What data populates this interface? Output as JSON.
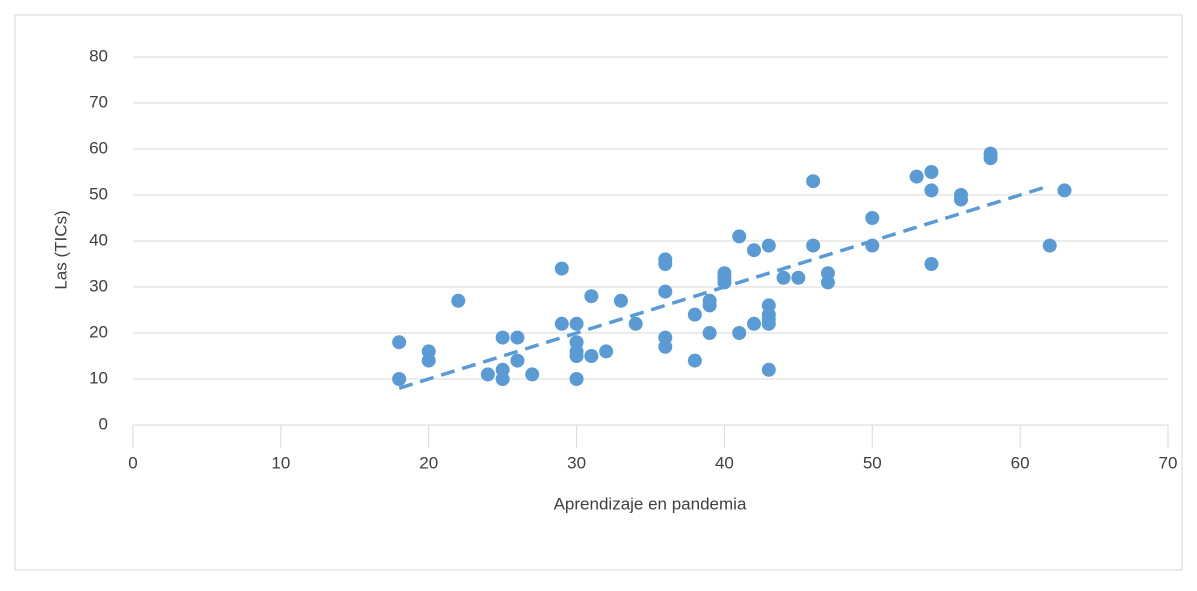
{
  "chart_data": {
    "type": "scatter",
    "xlabel": "Aprendizaje en pandemia",
    "ylabel": "Las (TICs)",
    "color": "#5b9bd5",
    "grid": true,
    "xlim": [
      0,
      70
    ],
    "xticks": [
      0,
      10,
      20,
      30,
      40,
      50,
      60,
      70
    ],
    "ylim": [
      -5,
      80
    ],
    "yticks": [
      0,
      10,
      20,
      30,
      40,
      50,
      60,
      70,
      80
    ],
    "x": [
      18,
      18,
      20,
      20,
      22,
      24,
      25,
      25,
      25,
      26,
      26,
      27,
      29,
      29,
      30,
      30,
      30,
      30,
      30,
      31,
      31,
      32,
      33,
      34,
      36,
      36,
      36,
      36,
      36,
      38,
      38,
      39,
      39,
      39,
      40,
      40,
      40,
      41,
      41,
      42,
      42,
      43,
      43,
      43,
      43,
      43,
      43,
      44,
      45,
      46,
      46,
      47,
      47,
      50,
      50,
      53,
      54,
      54,
      54,
      56,
      56,
      58,
      58,
      62,
      63
    ],
    "y": [
      10,
      18,
      14,
      16,
      27,
      11,
      10,
      12,
      19,
      14,
      19,
      11,
      22,
      34,
      10,
      15,
      16,
      18,
      22,
      15,
      28,
      16,
      27,
      22,
      17,
      19,
      29,
      35,
      36,
      14,
      24,
      20,
      26,
      27,
      31,
      32,
      33,
      20,
      41,
      22,
      38,
      12,
      22,
      23,
      24,
      26,
      39,
      32,
      32,
      39,
      53,
      31,
      33,
      39,
      45,
      54,
      35,
      51,
      55,
      49,
      50,
      58,
      59,
      39,
      51
    ],
    "trendline": {
      "x": [
        18,
        62
      ],
      "y": [
        8,
        52
      ]
    }
  }
}
